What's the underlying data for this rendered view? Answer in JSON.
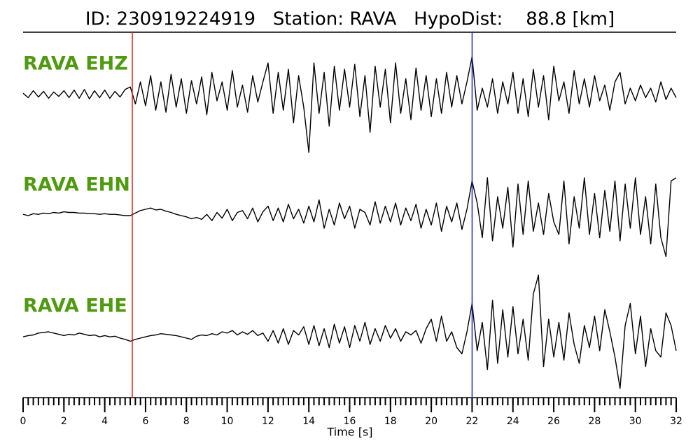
{
  "chart_data": {
    "type": "line",
    "title": "ID: 230919224919   Station: RAVA   HypoDist:    88.8 [km]",
    "xlabel": "Time [s]",
    "xlim": [
      0,
      32
    ],
    "xticks": [
      0,
      2,
      4,
      6,
      8,
      10,
      12,
      14,
      16,
      18,
      20,
      22,
      24,
      26,
      28,
      30,
      32
    ],
    "ylim": [
      -1,
      1
    ],
    "label_color": "#4f9a10",
    "vlines": [
      {
        "x": 5.35,
        "color": "#e02020"
      },
      {
        "x": 22.0,
        "color": "#2020d0"
      }
    ],
    "x": [
      0,
      0.25,
      0.5,
      0.75,
      1,
      1.25,
      1.5,
      1.75,
      2,
      2.25,
      2.5,
      2.75,
      3,
      3.25,
      3.5,
      3.75,
      4,
      4.25,
      4.5,
      4.75,
      5,
      5.25,
      5.5,
      5.75,
      6,
      6.25,
      6.5,
      6.75,
      7,
      7.25,
      7.5,
      7.75,
      8,
      8.25,
      8.5,
      8.75,
      9,
      9.25,
      9.5,
      9.75,
      10,
      10.25,
      10.5,
      10.75,
      11,
      11.25,
      11.5,
      11.75,
      12,
      12.25,
      12.5,
      12.75,
      13,
      13.25,
      13.5,
      13.75,
      14,
      14.25,
      14.5,
      14.75,
      15,
      15.25,
      15.5,
      15.75,
      16,
      16.25,
      16.5,
      16.75,
      17,
      17.25,
      17.5,
      17.75,
      18,
      18.25,
      18.5,
      18.75,
      19,
      19.25,
      19.5,
      19.75,
      20,
      20.25,
      20.5,
      20.75,
      21,
      21.25,
      21.5,
      21.75,
      22,
      22.25,
      22.5,
      22.75,
      23,
      23.25,
      23.5,
      23.75,
      24,
      24.25,
      24.5,
      24.75,
      25,
      25.25,
      25.5,
      25.75,
      26,
      26.25,
      26.5,
      26.75,
      27,
      27.25,
      27.5,
      27.75,
      28,
      28.25,
      28.5,
      28.75,
      29,
      29.25,
      29.5,
      29.75,
      30,
      30.25,
      30.5,
      30.75,
      31,
      31.25,
      31.5,
      31.75,
      32
    ],
    "series": [
      {
        "name": "RAVA EHZ",
        "color": "#000000",
        "values": [
          0.02,
          -0.05,
          0.06,
          -0.04,
          0.05,
          -0.06,
          0.04,
          -0.03,
          0.06,
          -0.05,
          0.07,
          -0.06,
          0.08,
          -0.07,
          0.06,
          -0.05,
          0.07,
          -0.06,
          0.05,
          -0.04,
          0.08,
          0.12,
          -0.15,
          0.2,
          -0.18,
          0.3,
          -0.25,
          0.2,
          -0.28,
          0.32,
          -0.2,
          0.25,
          -0.3,
          0.22,
          -0.15,
          0.28,
          -0.32,
          0.35,
          -0.1,
          0.2,
          -0.25,
          0.38,
          -0.2,
          0.15,
          -0.28,
          0.3,
          -0.12,
          0.2,
          0.5,
          -0.3,
          0.35,
          -0.25,
          0.4,
          -0.45,
          0.3,
          -0.2,
          -0.92,
          0.5,
          -0.3,
          0.35,
          -0.5,
          0.45,
          -0.25,
          0.4,
          -0.2,
          0.48,
          -0.35,
          0.3,
          -0.6,
          0.45,
          -0.2,
          0.4,
          -0.45,
          0.5,
          -0.3,
          0.25,
          -0.4,
          0.42,
          -0.25,
          0.3,
          -0.35,
          0.25,
          -0.3,
          0.35,
          -0.2,
          0.3,
          -0.15,
          0.2,
          0.6,
          -0.25,
          0.1,
          -0.2,
          0.25,
          -0.3,
          0.2,
          -0.15,
          0.35,
          -0.3,
          0.25,
          -0.35,
          0.4,
          -0.2,
          0.3,
          -0.4,
          0.45,
          -0.1,
          0.2,
          -0.3,
          0.38,
          -0.15,
          0.25,
          -0.2,
          0.3,
          -0.1,
          0.15,
          -0.25,
          0.2,
          0.35,
          -0.15,
          0.1,
          -0.1,
          0.15,
          -0.05,
          0.1,
          -0.12,
          0.2,
          -0.08,
          0.1,
          -0.05
        ]
      },
      {
        "name": "RAVA EHN",
        "color": "#000000",
        "values": [
          0.02,
          0.0,
          0.03,
          0.02,
          0.04,
          0.03,
          0.05,
          0.04,
          0.06,
          0.05,
          0.05,
          0.04,
          0.04,
          0.03,
          0.03,
          0.02,
          0.03,
          0.02,
          0.02,
          0.01,
          0.0,
          0.0,
          0.04,
          0.08,
          0.1,
          0.12,
          0.09,
          0.1,
          0.07,
          0.05,
          0.02,
          0.0,
          -0.02,
          -0.05,
          -0.03,
          -0.06,
          0.02,
          -0.08,
          0.05,
          -0.04,
          0.1,
          -0.08,
          0.05,
          0.08,
          -0.05,
          0.12,
          -0.1,
          0.06,
          0.15,
          -0.08,
          0.12,
          -0.1,
          0.18,
          -0.05,
          0.1,
          -0.12,
          0.15,
          -0.1,
          0.25,
          -0.2,
          0.1,
          -0.15,
          0.2,
          -0.05,
          0.15,
          -0.2,
          0.1,
          0.05,
          -0.15,
          0.22,
          -0.12,
          0.15,
          -0.1,
          0.2,
          -0.15,
          0.12,
          -0.08,
          0.18,
          -0.2,
          0.1,
          -0.15,
          0.2,
          -0.25,
          0.15,
          -0.1,
          0.2,
          -0.22,
          0.1,
          0.55,
          0.2,
          -0.35,
          0.6,
          -0.4,
          0.3,
          -0.2,
          0.45,
          -0.5,
          0.5,
          -0.3,
          0.55,
          -0.25,
          0.2,
          -0.3,
          0.35,
          -0.1,
          -0.3,
          0.55,
          -0.45,
          0.3,
          -0.2,
          0.6,
          -0.3,
          0.35,
          -0.35,
          0.4,
          -0.25,
          0.55,
          -0.4,
          0.5,
          -0.2,
          0.6,
          -0.3,
          0.3,
          -0.45,
          0.5,
          -0.35,
          -0.65,
          0.55,
          0.6
        ]
      },
      {
        "name": "RAVA EHE",
        "color": "#000000",
        "values": [
          0.02,
          0.04,
          0.05,
          0.08,
          0.09,
          0.1,
          0.08,
          0.06,
          0.04,
          0.06,
          0.05,
          0.08,
          0.06,
          0.04,
          0.05,
          0.02,
          0.04,
          0.02,
          0.03,
          0.0,
          -0.02,
          -0.05,
          -0.02,
          0.0,
          0.02,
          0.04,
          0.05,
          0.07,
          0.06,
          0.05,
          0.04,
          0.02,
          0.0,
          -0.02,
          0.03,
          0.05,
          0.04,
          0.07,
          0.05,
          0.1,
          0.08,
          0.12,
          0.05,
          0.1,
          0.06,
          0.12,
          0.04,
          0.08,
          -0.05,
          0.12,
          -0.08,
          0.15,
          -0.1,
          0.12,
          0.05,
          0.18,
          -0.1,
          0.2,
          -0.12,
          0.15,
          -0.15,
          0.22,
          -0.08,
          0.18,
          -0.15,
          0.2,
          -0.05,
          0.25,
          -0.1,
          0.15,
          -0.05,
          0.2,
          0.0,
          0.15,
          -0.05,
          0.1,
          0.05,
          0.12,
          -0.08,
          0.15,
          0.3,
          -0.05,
          0.35,
          -0.05,
          0.1,
          -0.15,
          -0.25,
          0.1,
          0.55,
          -0.2,
          0.25,
          -0.5,
          0.6,
          -0.4,
          0.45,
          -0.3,
          0.5,
          -0.25,
          0.3,
          -0.35,
          0.7,
          1.0,
          -0.45,
          0.3,
          -0.3,
          0.25,
          -0.35,
          0.4,
          -0.1,
          -0.4,
          0.2,
          -0.15,
          0.35,
          -0.2,
          0.45,
          0.1,
          -0.3,
          -0.8,
          0.2,
          0.55,
          -0.25,
          0.35,
          -0.45,
          0.15,
          -0.2,
          -0.3,
          0.4,
          0.2,
          -0.2
        ]
      }
    ]
  }
}
